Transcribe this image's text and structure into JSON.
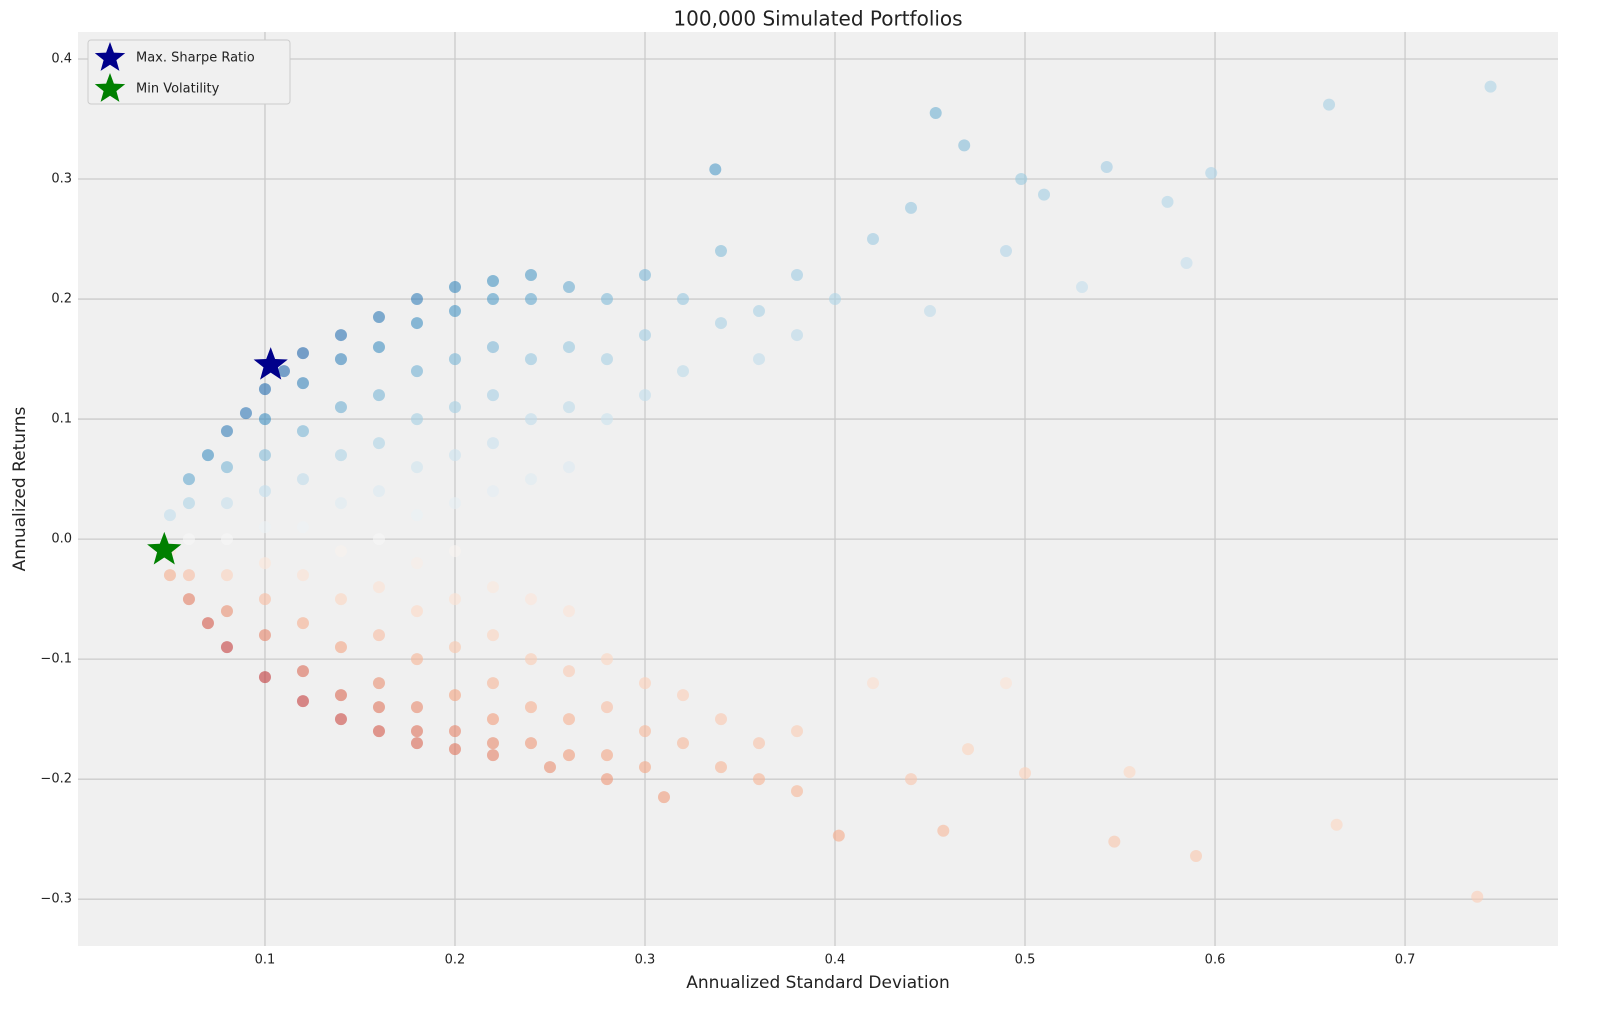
{
  "chart_data": {
    "type": "scatter",
    "title": "100,000 Simulated Portfolios",
    "x_label": "Annualized Standard Deviation",
    "y_label": "Annualized Returns",
    "xlim": [
      0.0016,
      0.7805
    ],
    "ylim": [
      -0.339,
      0.4225
    ],
    "xticks": [
      0.1,
      0.2,
      0.3,
      0.4,
      0.5,
      0.6,
      0.7
    ],
    "yticks": [
      {
        "value": -0.3,
        "label": "−0.3"
      },
      {
        "value": -0.2,
        "label": "−0.2"
      },
      {
        "value": -0.1,
        "label": "−0.1"
      },
      {
        "value": 0,
        "label": "0.0"
      },
      0.1,
      0.2,
      0.3,
      0.4
    ],
    "grid": true,
    "legend": "upper left",
    "colormap": [
      "#67001f",
      "#b2182b",
      "#d6604d",
      "#f4a582",
      "#fddbc7",
      "#f7f7f7",
      "#d1e5f0",
      "#92c5de",
      "#4393c3",
      "#2166ac",
      "#053061"
    ],
    "x": [
      0.06,
      0.07,
      0.08,
      0.09,
      0.1,
      0.11,
      0.12,
      0.14,
      0.16,
      0.18,
      0.2,
      0.22,
      0.24,
      0.06,
      0.07,
      0.08,
      0.1,
      0.12,
      0.14,
      0.16,
      0.18,
      0.2,
      0.22,
      0.25,
      0.28,
      0.05,
      0.05,
      0.05,
      0.06,
      0.06,
      0.06,
      0.08,
      0.08,
      0.08,
      0.08,
      0.08,
      0.1,
      0.1,
      0.1,
      0.1,
      0.1,
      0.1,
      0.1,
      0.12,
      0.12,
      0.12,
      0.12,
      0.12,
      0.12,
      0.12,
      0.14,
      0.14,
      0.14,
      0.14,
      0.14,
      0.14,
      0.14,
      0.14,
      0.16,
      0.16,
      0.16,
      0.16,
      0.16,
      0.16,
      0.16,
      0.16,
      0.16,
      0.18,
      0.18,
      0.18,
      0.18,
      0.18,
      0.18,
      0.18,
      0.18,
      0.18,
      0.18,
      0.2,
      0.2,
      0.2,
      0.2,
      0.2,
      0.2,
      0.2,
      0.2,
      0.2,
      0.2,
      0.22,
      0.22,
      0.22,
      0.22,
      0.22,
      0.22,
      0.22,
      0.22,
      0.22,
      0.22,
      0.24,
      0.24,
      0.24,
      0.24,
      0.24,
      0.24,
      0.24,
      0.24,
      0.26,
      0.26,
      0.26,
      0.26,
      0.26,
      0.26,
      0.26,
      0.26,
      0.28,
      0.28,
      0.28,
      0.28,
      0.28,
      0.28,
      0.3,
      0.3,
      0.3,
      0.3,
      0.3,
      0.3,
      0.32,
      0.32,
      0.32,
      0.32,
      0.34,
      0.34,
      0.34,
      0.34,
      0.36,
      0.36,
      0.36,
      0.36,
      0.38,
      0.38,
      0.38,
      0.38,
      0.337,
      0.453,
      0.468,
      0.66,
      0.745,
      0.543,
      0.498,
      0.598,
      0.575,
      0.51,
      0.44,
      0.53,
      0.585,
      0.49,
      0.42,
      0.4,
      0.45,
      0.738,
      0.59,
      0.664,
      0.402,
      0.547,
      0.5,
      0.555,
      0.457,
      0.47,
      0.42,
      0.49,
      0.31,
      0.44
    ],
    "values": [
      0.05,
      0.07,
      0.09,
      0.105,
      0.125,
      0.14,
      0.155,
      0.17,
      0.185,
      0.2,
      0.21,
      0.215,
      0.22,
      -0.05,
      -0.07,
      -0.09,
      -0.115,
      -0.135,
      -0.15,
      -0.16,
      -0.17,
      -0.175,
      -0.18,
      -0.19,
      -0.2,
      0.02,
      -0.01,
      -0.03,
      0.03,
      0.0,
      -0.03,
      0.06,
      0.03,
      0.0,
      -0.03,
      -0.06,
      0.1,
      0.07,
      0.04,
      0.01,
      -0.02,
      -0.05,
      -0.08,
      0.13,
      0.09,
      0.05,
      0.01,
      -0.03,
      -0.07,
      -0.11,
      0.15,
      0.11,
      0.07,
      0.03,
      -0.01,
      -0.05,
      -0.09,
      -0.13,
      0.16,
      0.12,
      0.08,
      0.04,
      0.0,
      -0.04,
      -0.08,
      -0.12,
      -0.14,
      0.18,
      0.14,
      0.1,
      0.06,
      0.02,
      -0.02,
      -0.06,
      -0.1,
      -0.14,
      -0.16,
      0.19,
      0.15,
      0.11,
      0.07,
      0.03,
      -0.01,
      -0.05,
      -0.09,
      -0.13,
      -0.16,
      0.2,
      0.16,
      0.12,
      0.08,
      0.04,
      -0.04,
      -0.08,
      -0.12,
      -0.15,
      -0.17,
      0.2,
      0.15,
      0.1,
      0.05,
      -0.05,
      -0.1,
      -0.14,
      -0.17,
      0.21,
      0.16,
      0.11,
      0.06,
      -0.06,
      -0.11,
      -0.15,
      -0.18,
      0.2,
      0.15,
      0.1,
      -0.1,
      -0.14,
      -0.18,
      0.22,
      0.17,
      0.12,
      -0.12,
      -0.16,
      -0.19,
      0.2,
      0.14,
      -0.13,
      -0.17,
      0.24,
      0.18,
      -0.15,
      -0.19,
      0.19,
      0.15,
      -0.17,
      -0.2,
      0.22,
      0.17,
      -0.16,
      -0.21,
      0.308,
      0.355,
      0.328,
      0.362,
      0.377,
      0.31,
      0.3,
      0.305,
      0.281,
      0.287,
      0.276,
      0.21,
      0.23,
      0.24,
      0.25,
      0.2,
      0.19,
      -0.298,
      -0.264,
      -0.238,
      -0.247,
      -0.252,
      -0.195,
      -0.194,
      -0.243,
      -0.175,
      -0.12,
      -0.12,
      -0.215,
      -0.2
    ],
    "markers": [
      {
        "name": "Max. Sharpe Ratio",
        "color": "#00008b",
        "x": 0.103,
        "y": 0.145
      },
      {
        "name": "Min Volatility",
        "color": "#008000",
        "x": 0.047,
        "y": -0.009
      }
    ]
  }
}
